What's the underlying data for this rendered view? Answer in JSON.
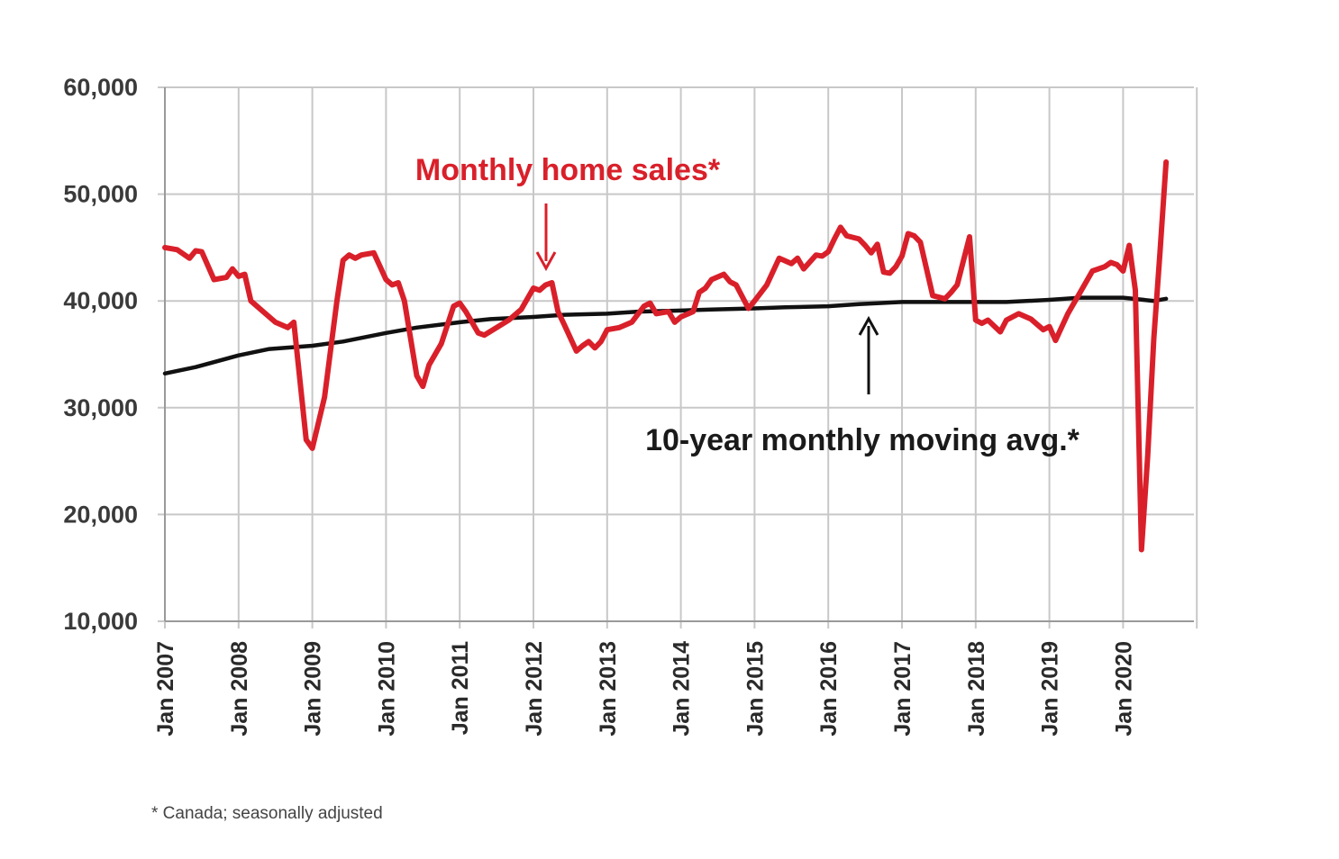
{
  "chart_data": {
    "type": "line",
    "title": "",
    "xlabel": "",
    "ylabel": "",
    "ylim": [
      10000,
      60000
    ],
    "yticks": [
      "60,000",
      "50,000",
      "40,000",
      "30,000",
      "20,000",
      "10,000"
    ],
    "ytick_values": [
      60000,
      50000,
      40000,
      30000,
      20000,
      10000
    ],
    "xticks": [
      "Jan 2007",
      "Jan 2008",
      "Jan 2009",
      "Jan 2010",
      "Jan 2011",
      "Jan 2012",
      "Jan 2013",
      "Jan 2014",
      "Jan 2015",
      "Jan 2016",
      "Jan 2017",
      "Jan 2018",
      "Jan 2019",
      "Jan 2020"
    ],
    "x_range": [
      "2007-01",
      "2020-08"
    ],
    "grid": true,
    "series": [
      {
        "name": "Monthly home sales*",
        "color": "#d9202a",
        "points": [
          [
            "2007-01",
            45000
          ],
          [
            "2007-03",
            44800
          ],
          [
            "2007-05",
            44000
          ],
          [
            "2007-06",
            44700
          ],
          [
            "2007-07",
            44600
          ],
          [
            "2007-09",
            42000
          ],
          [
            "2007-11",
            42200
          ],
          [
            "2007-12",
            43000
          ],
          [
            "2008-01",
            42300
          ],
          [
            "2008-02",
            42500
          ],
          [
            "2008-03",
            40000
          ],
          [
            "2008-05",
            39000
          ],
          [
            "2008-07",
            38000
          ],
          [
            "2008-09",
            37500
          ],
          [
            "2008-10",
            38000
          ],
          [
            "2008-12",
            27000
          ],
          [
            "2009-01",
            26200
          ],
          [
            "2009-03",
            31000
          ],
          [
            "2009-05",
            40000
          ],
          [
            "2009-06",
            43800
          ],
          [
            "2009-07",
            44300
          ],
          [
            "2009-08",
            44000
          ],
          [
            "2009-09",
            44300
          ],
          [
            "2009-11",
            44500
          ],
          [
            "2010-01",
            42000
          ],
          [
            "2010-02",
            41500
          ],
          [
            "2010-03",
            41700
          ],
          [
            "2010-04",
            40000
          ],
          [
            "2010-06",
            33000
          ],
          [
            "2010-07",
            32000
          ],
          [
            "2010-08",
            34000
          ],
          [
            "2010-10",
            36000
          ],
          [
            "2010-12",
            39500
          ],
          [
            "2011-01",
            39800
          ],
          [
            "2011-02",
            39000
          ],
          [
            "2011-04",
            37000
          ],
          [
            "2011-05",
            36800
          ],
          [
            "2011-07",
            37500
          ],
          [
            "2011-09",
            38200
          ],
          [
            "2011-11",
            39200
          ],
          [
            "2012-01",
            41200
          ],
          [
            "2012-02",
            41000
          ],
          [
            "2012-03",
            41500
          ],
          [
            "2012-04",
            41700
          ],
          [
            "2012-05",
            39000
          ],
          [
            "2012-06",
            37800
          ],
          [
            "2012-08",
            35300
          ],
          [
            "2012-09",
            35800
          ],
          [
            "2012-10",
            36200
          ],
          [
            "2012-11",
            35600
          ],
          [
            "2012-12",
            36200
          ],
          [
            "2013-01",
            37300
          ],
          [
            "2013-03",
            37500
          ],
          [
            "2013-05",
            38000
          ],
          [
            "2013-07",
            39500
          ],
          [
            "2013-08",
            39800
          ],
          [
            "2013-09",
            38800
          ],
          [
            "2013-11",
            39000
          ],
          [
            "2013-12",
            38000
          ],
          [
            "2014-01",
            38500
          ],
          [
            "2014-03",
            39000
          ],
          [
            "2014-04",
            40800
          ],
          [
            "2014-05",
            41200
          ],
          [
            "2014-06",
            42000
          ],
          [
            "2014-08",
            42500
          ],
          [
            "2014-09",
            41800
          ],
          [
            "2014-10",
            41500
          ],
          [
            "2014-12",
            39300
          ],
          [
            "2015-01",
            40000
          ],
          [
            "2015-03",
            41500
          ],
          [
            "2015-05",
            44000
          ],
          [
            "2015-07",
            43500
          ],
          [
            "2015-08",
            44000
          ],
          [
            "2015-09",
            43000
          ],
          [
            "2015-11",
            44300
          ],
          [
            "2015-12",
            44200
          ],
          [
            "2016-01",
            44600
          ],
          [
            "2016-02",
            45800
          ],
          [
            "2016-03",
            46900
          ],
          [
            "2016-04",
            46100
          ],
          [
            "2016-06",
            45800
          ],
          [
            "2016-07",
            45200
          ],
          [
            "2016-08",
            44500
          ],
          [
            "2016-09",
            45300
          ],
          [
            "2016-10",
            42700
          ],
          [
            "2016-11",
            42600
          ],
          [
            "2016-12",
            43200
          ],
          [
            "2017-01",
            44200
          ],
          [
            "2017-02",
            46300
          ],
          [
            "2017-03",
            46100
          ],
          [
            "2017-04",
            45500
          ],
          [
            "2017-06",
            40500
          ],
          [
            "2017-08",
            40200
          ],
          [
            "2017-09",
            40800
          ],
          [
            "2017-10",
            41500
          ],
          [
            "2017-12",
            46000
          ],
          [
            "2018-01",
            38200
          ],
          [
            "2018-02",
            37900
          ],
          [
            "2018-03",
            38200
          ],
          [
            "2018-05",
            37100
          ],
          [
            "2018-06",
            38200
          ],
          [
            "2018-08",
            38800
          ],
          [
            "2018-10",
            38300
          ],
          [
            "2018-12",
            37300
          ],
          [
            "2019-01",
            37600
          ],
          [
            "2019-02",
            36300
          ],
          [
            "2019-04",
            38800
          ],
          [
            "2019-06",
            40800
          ],
          [
            "2019-08",
            42800
          ],
          [
            "2019-10",
            43200
          ],
          [
            "2019-11",
            43600
          ],
          [
            "2019-12",
            43400
          ],
          [
            "2020-01",
            42800
          ],
          [
            "2020-02",
            45200
          ],
          [
            "2020-03",
            41000
          ],
          [
            "2020-04",
            16700
          ],
          [
            "2020-05",
            25500
          ],
          [
            "2020-06",
            36500
          ],
          [
            "2020-07",
            44500
          ],
          [
            "2020-08",
            53000
          ]
        ]
      },
      {
        "name": "10-year monthly moving avg.*",
        "color": "#111111",
        "points": [
          [
            "2007-01",
            33200
          ],
          [
            "2007-06",
            33800
          ],
          [
            "2008-01",
            34900
          ],
          [
            "2008-06",
            35500
          ],
          [
            "2009-01",
            35800
          ],
          [
            "2009-06",
            36200
          ],
          [
            "2010-01",
            37000
          ],
          [
            "2010-06",
            37500
          ],
          [
            "2011-01",
            38000
          ],
          [
            "2011-06",
            38300
          ],
          [
            "2012-01",
            38500
          ],
          [
            "2012-06",
            38700
          ],
          [
            "2013-01",
            38800
          ],
          [
            "2013-06",
            39000
          ],
          [
            "2014-01",
            39100
          ],
          [
            "2014-06",
            39200
          ],
          [
            "2015-01",
            39300
          ],
          [
            "2015-06",
            39400
          ],
          [
            "2016-01",
            39500
          ],
          [
            "2016-06",
            39700
          ],
          [
            "2017-01",
            39900
          ],
          [
            "2017-06",
            39900
          ],
          [
            "2018-01",
            39900
          ],
          [
            "2018-06",
            39900
          ],
          [
            "2019-01",
            40100
          ],
          [
            "2019-06",
            40300
          ],
          [
            "2020-01",
            40300
          ],
          [
            "2020-06",
            40000
          ],
          [
            "2020-08",
            40200
          ]
        ]
      }
    ],
    "annotations": [
      {
        "text": "Monthly home sales*",
        "color": "#d9202a"
      },
      {
        "text": "10-year monthly moving avg.*",
        "color": "#111111"
      }
    ],
    "footnote": "* Canada; seasonally adjusted"
  }
}
